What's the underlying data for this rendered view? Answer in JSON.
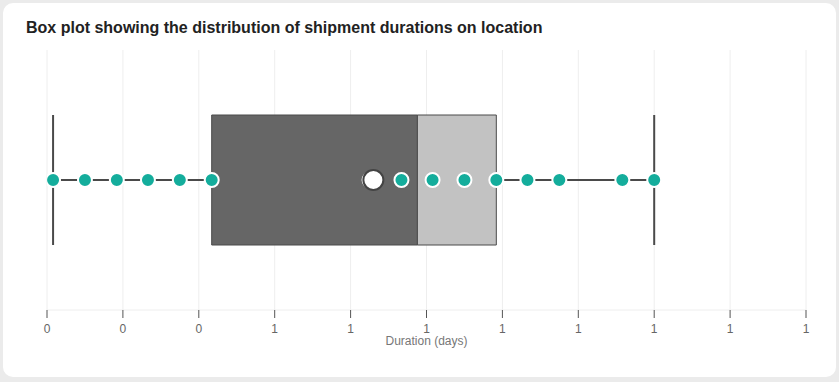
{
  "chart_data": {
    "type": "box",
    "title": "Box plot showing the distribution of shipment durations on location",
    "x_label": "Duration (days)",
    "xlim": [
      0.2,
      1.2
    ],
    "xticks": [
      {
        "value": 0.2,
        "label": "0"
      },
      {
        "value": 0.3,
        "label": "0"
      },
      {
        "value": 0.4,
        "label": "0"
      },
      {
        "value": 0.5,
        "label": "1"
      },
      {
        "value": 0.6,
        "label": "1"
      },
      {
        "value": 0.7,
        "label": "1"
      },
      {
        "value": 0.8,
        "label": "1"
      },
      {
        "value": 0.9,
        "label": "1"
      },
      {
        "value": 1.0,
        "label": "1"
      },
      {
        "value": 1.1,
        "label": "1"
      },
      {
        "value": 1.2,
        "label": "1"
      }
    ],
    "grid": true,
    "min": 0.208,
    "q1": 0.417,
    "median": 0.688,
    "q3": 0.792,
    "max": 1.0,
    "mean": 0.63,
    "points": [
      0.208,
      0.25,
      0.292,
      0.333,
      0.375,
      0.417,
      0.625,
      0.667,
      0.708,
      0.75,
      0.792,
      0.833,
      0.875,
      0.958,
      1.0
    ],
    "color": "#14ad9c"
  }
}
